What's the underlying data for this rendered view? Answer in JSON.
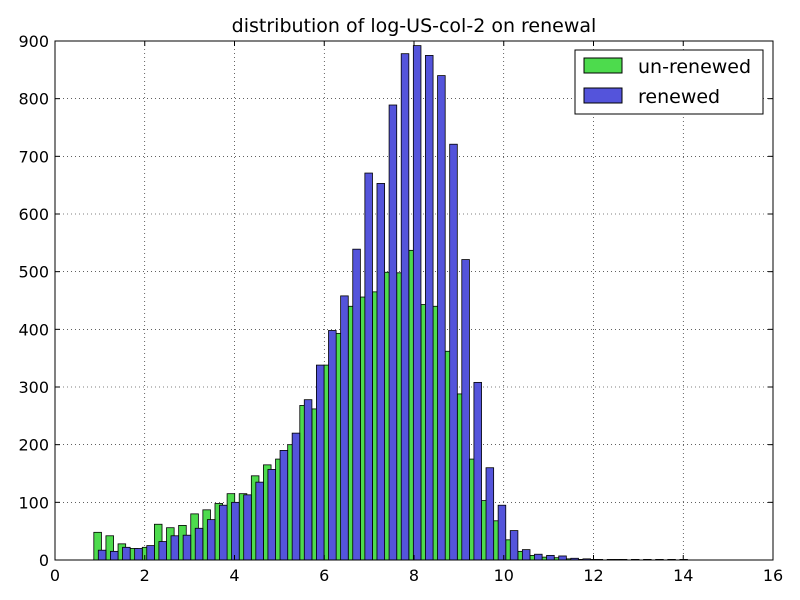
{
  "chart_data": {
    "type": "bar",
    "title": "distribution of log-US-col-2 on renewal",
    "xlabel": "",
    "ylabel": "",
    "xlim": [
      0,
      16
    ],
    "ylim": [
      0,
      900
    ],
    "xticks": [
      0,
      2,
      4,
      6,
      8,
      10,
      12,
      14,
      16
    ],
    "yticks": [
      0,
      100,
      200,
      300,
      400,
      500,
      600,
      700,
      800,
      900
    ],
    "grid": true,
    "legend_position": "top-right",
    "bin_width": 0.27,
    "bar_width": 0.17,
    "series": [
      {
        "name": "un-renewed",
        "color": "#4ddb4d",
        "x": [
          0.95,
          1.22,
          1.49,
          1.76,
          2.03,
          2.3,
          2.57,
          2.84,
          3.11,
          3.38,
          3.65,
          3.92,
          4.19,
          4.46,
          4.73,
          5.0,
          5.27,
          5.54,
          5.81,
          6.08,
          6.35,
          6.62,
          6.89,
          7.16,
          7.43,
          7.7,
          7.97,
          8.24,
          8.51,
          8.78,
          9.05,
          9.32,
          9.59,
          9.86,
          10.13,
          10.4,
          10.67,
          10.94,
          11.21,
          11.48,
          11.75,
          12.02,
          12.29,
          12.56,
          12.83,
          13.1,
          13.37,
          13.64,
          13.91,
          14.18
        ],
        "values": [
          48,
          42,
          28,
          20,
          22,
          62,
          56,
          60,
          80,
          87,
          98,
          115,
          115,
          146,
          165,
          175,
          200,
          268,
          262,
          338,
          393,
          440,
          456,
          465,
          499,
          498,
          537,
          443,
          440,
          362,
          288,
          175,
          103,
          68,
          35,
          15,
          8,
          5,
          4,
          2,
          1,
          1,
          0,
          1,
          0,
          0,
          0,
          0,
          0,
          0
        ]
      },
      {
        "name": "renewed",
        "color": "#5454db",
        "x": [
          0.95,
          1.22,
          1.49,
          1.76,
          2.03,
          2.3,
          2.57,
          2.84,
          3.11,
          3.38,
          3.65,
          3.92,
          4.19,
          4.46,
          4.73,
          5.0,
          5.27,
          5.54,
          5.81,
          6.08,
          6.35,
          6.62,
          6.89,
          7.16,
          7.43,
          7.7,
          7.97,
          8.24,
          8.51,
          8.78,
          9.05,
          9.32,
          9.59,
          9.86,
          10.13,
          10.4,
          10.67,
          10.94,
          11.21,
          11.48,
          11.75,
          12.02,
          12.29,
          12.56,
          12.83,
          13.1,
          13.37,
          13.64,
          13.91,
          14.18
        ],
        "values": [
          17,
          15,
          22,
          20,
          25,
          32,
          42,
          43,
          55,
          70,
          95,
          100,
          113,
          135,
          157,
          190,
          220,
          278,
          338,
          398,
          458,
          539,
          671,
          653,
          789,
          878,
          892,
          875,
          840,
          721,
          521,
          308,
          160,
          95,
          51,
          18,
          10,
          8,
          7,
          3,
          2,
          1,
          1,
          1,
          1,
          1,
          1,
          1,
          1,
          0
        ]
      }
    ]
  }
}
